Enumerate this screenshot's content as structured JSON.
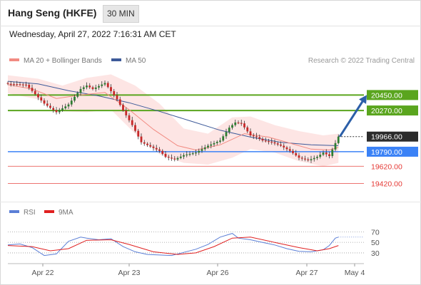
{
  "header": {
    "title": "Hang Seng (HKFE)",
    "interval": "30 MIN"
  },
  "subheader": {
    "datetime": "Wednesday, April 27, 2022 7:16:31 AM CET"
  },
  "legend": {
    "items": [
      {
        "label": "MA 20 + Bollinger Bands",
        "color": "#f28b82"
      },
      {
        "label": "MA 50",
        "color": "#3d5a99"
      }
    ],
    "credit": "Research © 2022 Trading Central"
  },
  "rsi_legend": {
    "items": [
      {
        "label": "RSI",
        "color": "#5b7fd6"
      },
      {
        "label": "9MA",
        "color": "#e02020"
      }
    ]
  },
  "colors": {
    "up_candle": "#2e7d32",
    "down_candle": "#c62828",
    "resistance": "#5aa51e",
    "support": "#e53935",
    "pivot": "#3b82f6",
    "current": "#333333",
    "bollinger": "#fde0df",
    "ma20": "#f28b82",
    "ma50": "#3d5a99",
    "arrow": "#2c5fa8"
  },
  "chart_data": {
    "type": "candlestick",
    "instrument": "Hang Seng (HKFE)",
    "timeframe": "30 MIN",
    "x_labels": [
      "Apr 22",
      "Apr 23",
      "Apr 26",
      "Apr 27",
      "May 4"
    ],
    "ylim": [
      19300,
      20760
    ],
    "levels": [
      {
        "value": 20450,
        "label": "20450.00",
        "kind": "resistance"
      },
      {
        "value": 20270,
        "label": "20270.00",
        "kind": "resistance"
      },
      {
        "value": 19966,
        "label": "19966.00",
        "kind": "current"
      },
      {
        "value": 19790,
        "label": "19790.00",
        "kind": "pivot"
      },
      {
        "value": 19620,
        "label": "19620.00",
        "kind": "support"
      },
      {
        "value": 19420,
        "label": "19420.00",
        "kind": "support"
      }
    ],
    "price_path": [
      [
        0,
        20580
      ],
      [
        6,
        20570
      ],
      [
        12,
        20350
      ],
      [
        16,
        20250
      ],
      [
        20,
        20340
      ],
      [
        24,
        20520
      ],
      [
        26,
        20560
      ],
      [
        28,
        20520
      ],
      [
        32,
        20590
      ],
      [
        36,
        20400
      ],
      [
        38,
        20270
      ],
      [
        41,
        20100
      ],
      [
        44,
        19900
      ],
      [
        47,
        19850
      ],
      [
        50,
        19800
      ],
      [
        52,
        19730
      ],
      [
        55,
        19700
      ],
      [
        58,
        19750
      ],
      [
        62,
        19780
      ],
      [
        66,
        19860
      ],
      [
        70,
        19920
      ],
      [
        73,
        20070
      ],
      [
        75,
        20130
      ],
      [
        77,
        20120
      ],
      [
        80,
        19980
      ],
      [
        82,
        19960
      ],
      [
        84,
        19920
      ],
      [
        87,
        19900
      ],
      [
        90,
        19860
      ],
      [
        93,
        19800
      ],
      [
        96,
        19720
      ],
      [
        99,
        19690
      ],
      [
        102,
        19730
      ],
      [
        104,
        19780
      ],
      [
        106,
        19740
      ],
      [
        108,
        19890
      ],
      [
        109,
        19966
      ]
    ],
    "ma50": [
      [
        0,
        20610
      ],
      [
        10,
        20580
      ],
      [
        20,
        20500
      ],
      [
        30,
        20440
      ],
      [
        40,
        20360
      ],
      [
        50,
        20260
      ],
      [
        60,
        20150
      ],
      [
        70,
        20040
      ],
      [
        80,
        19960
      ],
      [
        90,
        19900
      ],
      [
        100,
        19870
      ],
      [
        109,
        19860
      ]
    ],
    "ma20": [
      [
        0,
        20570
      ],
      [
        8,
        20520
      ],
      [
        16,
        20410
      ],
      [
        24,
        20450
      ],
      [
        32,
        20480
      ],
      [
        40,
        20280
      ],
      [
        48,
        20050
      ],
      [
        56,
        19860
      ],
      [
        62,
        19810
      ],
      [
        70,
        19870
      ],
      [
        78,
        20000
      ],
      [
        86,
        19960
      ],
      [
        94,
        19880
      ],
      [
        100,
        19820
      ],
      [
        106,
        19810
      ],
      [
        109,
        19840
      ]
    ],
    "bollinger_upper": [
      [
        0,
        20680
      ],
      [
        10,
        20640
      ],
      [
        18,
        20560
      ],
      [
        26,
        20650
      ],
      [
        34,
        20690
      ],
      [
        42,
        20560
      ],
      [
        50,
        20350
      ],
      [
        58,
        20060
      ],
      [
        66,
        20000
      ],
      [
        74,
        20190
      ],
      [
        80,
        20200
      ],
      [
        88,
        20100
      ],
      [
        96,
        20030
      ],
      [
        104,
        19980
      ],
      [
        109,
        20000
      ]
    ],
    "bollinger_lower": [
      [
        0,
        20470
      ],
      [
        10,
        20400
      ],
      [
        18,
        20260
      ],
      [
        26,
        20250
      ],
      [
        34,
        20280
      ],
      [
        42,
        20000
      ],
      [
        50,
        19760
      ],
      [
        58,
        19660
      ],
      [
        66,
        19640
      ],
      [
        74,
        19720
      ],
      [
        80,
        19820
      ],
      [
        88,
        19780
      ],
      [
        96,
        19680
      ],
      [
        104,
        19620
      ],
      [
        109,
        19660
      ]
    ],
    "forecast_arrow": {
      "from": [
        109,
        19966
      ],
      "to": [
        116,
        20450
      ]
    },
    "rsi": {
      "ylim": [
        15,
        80
      ],
      "ticks": [
        70,
        50,
        30
      ],
      "values": [
        [
          0,
          45
        ],
        [
          4,
          47
        ],
        [
          8,
          40
        ],
        [
          12,
          25
        ],
        [
          16,
          28
        ],
        [
          20,
          52
        ],
        [
          24,
          60
        ],
        [
          26,
          58
        ],
        [
          30,
          55
        ],
        [
          34,
          57
        ],
        [
          38,
          42
        ],
        [
          42,
          32
        ],
        [
          46,
          27
        ],
        [
          50,
          26
        ],
        [
          54,
          25
        ],
        [
          58,
          31
        ],
        [
          62,
          37
        ],
        [
          66,
          46
        ],
        [
          70,
          60
        ],
        [
          74,
          67
        ],
        [
          76,
          58
        ],
        [
          80,
          55
        ],
        [
          84,
          50
        ],
        [
          88,
          45
        ],
        [
          92,
          38
        ],
        [
          96,
          33
        ],
        [
          100,
          32
        ],
        [
          104,
          36
        ],
        [
          106,
          44
        ],
        [
          108,
          58
        ],
        [
          109,
          60
        ]
      ],
      "ma9": [
        [
          0,
          44
        ],
        [
          8,
          42
        ],
        [
          14,
          34
        ],
        [
          20,
          38
        ],
        [
          26,
          54
        ],
        [
          34,
          55
        ],
        [
          40,
          46
        ],
        [
          48,
          32
        ],
        [
          56,
          27
        ],
        [
          62,
          30
        ],
        [
          68,
          42
        ],
        [
          74,
          58
        ],
        [
          80,
          60
        ],
        [
          88,
          50
        ],
        [
          96,
          40
        ],
        [
          102,
          34
        ],
        [
          106,
          38
        ],
        [
          109,
          44
        ]
      ]
    }
  }
}
